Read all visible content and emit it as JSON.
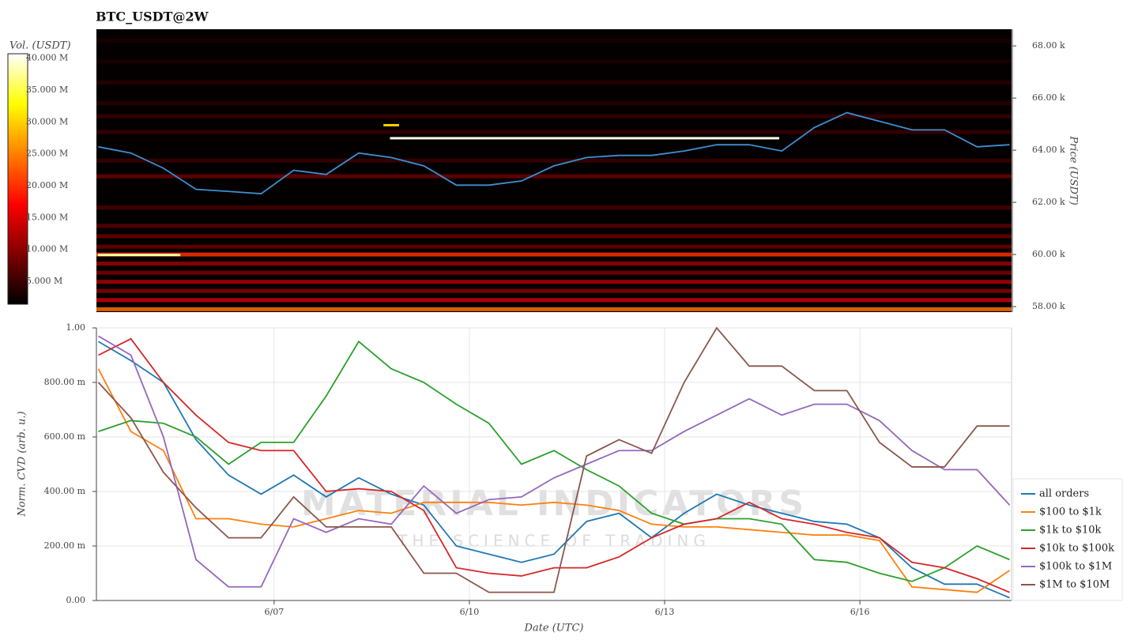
{
  "chart_data": [
    {
      "type": "heatmap",
      "title": "BTC_USDT@2W",
      "ylabel": "Price (USDT)",
      "colorbar_label": "Vol. (USDT)",
      "xlim": [
        4.27,
        18.33
      ],
      "ylim": [
        57790,
        68640
      ],
      "yticks": [
        {
          "value": 58000,
          "label": "58.00 k"
        },
        {
          "value": 60000,
          "label": "60.00 k"
        },
        {
          "value": 62000,
          "label": "62.00 k"
        },
        {
          "value": 64000,
          "label": "64.00 k"
        },
        {
          "value": 66000,
          "label": "66.00 k"
        },
        {
          "value": 68000,
          "label": "68.00 k"
        }
      ],
      "zlim": [
        1400000,
        40700000
      ],
      "zticks": [
        {
          "value": 5000000,
          "label": "5.000 M"
        },
        {
          "value": 10000000,
          "label": "10.000 M"
        },
        {
          "value": 15000000,
          "label": "15.000 M"
        },
        {
          "value": 20000000,
          "label": "20.000 M"
        },
        {
          "value": 25000000,
          "label": "25.000 M"
        },
        {
          "value": 30000000,
          "label": "30.000 M"
        },
        {
          "value": 35000000,
          "label": "35.000 M"
        },
        {
          "value": 40000000,
          "label": "40.000 M"
        }
      ],
      "levels": [
        57900,
        58250,
        58600,
        58950,
        59300,
        59650,
        60000,
        60300,
        60700,
        61100,
        61800,
        63000,
        63600,
        64700,
        65300,
        65800,
        66600,
        67400,
        68200
      ],
      "volumes": [
        24000000,
        14000000,
        10000000,
        12000000,
        9000000,
        11000000,
        20000000,
        8000000,
        8000000,
        7000000,
        6000000,
        8000000,
        5000000,
        5000000,
        5000000,
        4000000,
        4000000,
        3000000,
        3000000
      ],
      "walls": [
        {
          "price": 64460,
          "x0": 8.78,
          "x1": 14.76,
          "volume": 40000000
        },
        {
          "price": 59980,
          "x0": 4.29,
          "x1": 5.56,
          "volume": 38000000
        },
        {
          "price": 64960,
          "x0": 8.68,
          "x1": 8.92,
          "volume": 30000000
        }
      ],
      "x": [
        4.3,
        4.8,
        5.3,
        5.8,
        6.3,
        6.8,
        7.3,
        7.8,
        8.3,
        8.8,
        9.3,
        9.8,
        10.3,
        10.8,
        11.3,
        11.8,
        12.3,
        12.8,
        13.3,
        13.8,
        14.3,
        14.8,
        15.3,
        15.8,
        16.3,
        16.8,
        17.3,
        17.8,
        18.3
      ],
      "series": [
        {
          "color": "#3d8fd1",
          "values": [
            64130,
            63890,
            63310,
            62500,
            62420,
            62330,
            63230,
            63070,
            63890,
            63720,
            63400,
            62660,
            62660,
            62820,
            63400,
            63720,
            63800,
            63800,
            63970,
            64210,
            64210,
            63970,
            64870,
            65440,
            65110,
            64780,
            64780,
            64130,
            64210
          ]
        }
      ]
    },
    {
      "type": "line",
      "xlabel": "Date (UTC)",
      "ylabel": "Norm. CVD (arb. u.)",
      "watermark": "MATERIAL INDICATORS",
      "watermark_sub": "THE SCIENCE OF TRADING",
      "xlim": [
        4.27,
        18.33
      ],
      "xticks": [
        {
          "value": 7,
          "label": "6/07"
        },
        {
          "value": 10,
          "label": "6/10"
        },
        {
          "value": 13,
          "label": "6/13"
        },
        {
          "value": 16,
          "label": "6/16"
        }
      ],
      "ylim": [
        0,
        1
      ],
      "yticks": [
        {
          "value": 0,
          "label": "0.00"
        },
        {
          "value": 0.2,
          "label": "200.00 m"
        },
        {
          "value": 0.4,
          "label": "400.00 m"
        },
        {
          "value": 0.6,
          "label": "600.00 m"
        },
        {
          "value": 0.8,
          "label": "800.00 m"
        },
        {
          "value": 1,
          "label": "1.00"
        }
      ],
      "grid": true,
      "legend": "lower right",
      "x": [
        4.3,
        4.8,
        5.3,
        5.8,
        6.3,
        6.8,
        7.3,
        7.8,
        8.3,
        8.8,
        9.3,
        9.8,
        10.3,
        10.8,
        11.3,
        11.8,
        12.3,
        12.8,
        13.3,
        13.8,
        14.3,
        14.8,
        15.3,
        15.8,
        16.3,
        16.8,
        17.3,
        17.8,
        18.3
      ],
      "series": [
        {
          "name": "all orders",
          "color": "#1f77b4",
          "values": [
            0.95,
            0.88,
            0.8,
            0.59,
            0.46,
            0.39,
            0.46,
            0.38,
            0.45,
            0.39,
            0.35,
            0.2,
            0.17,
            0.14,
            0.17,
            0.29,
            0.32,
            0.23,
            0.32,
            0.39,
            0.35,
            0.32,
            0.29,
            0.28,
            0.23,
            0.12,
            0.06,
            0.06,
            0.01
          ]
        },
        {
          "name": "$100 to $1k",
          "color": "#ff7f0e",
          "values": [
            0.85,
            0.62,
            0.55,
            0.3,
            0.3,
            0.28,
            0.27,
            0.3,
            0.33,
            0.32,
            0.36,
            0.36,
            0.36,
            0.35,
            0.36,
            0.35,
            0.33,
            0.28,
            0.27,
            0.27,
            0.26,
            0.25,
            0.24,
            0.24,
            0.22,
            0.05,
            0.04,
            0.03,
            0.11
          ]
        },
        {
          "name": "$1k to $10k",
          "color": "#2ca02c",
          "values": [
            0.62,
            0.66,
            0.65,
            0.6,
            0.5,
            0.58,
            0.58,
            0.75,
            0.95,
            0.85,
            0.8,
            0.72,
            0.65,
            0.5,
            0.55,
            0.48,
            0.42,
            0.32,
            0.28,
            0.3,
            0.3,
            0.28,
            0.15,
            0.14,
            0.1,
            0.07,
            0.12,
            0.2,
            0.15
          ]
        },
        {
          "name": "$10k to $100k",
          "color": "#d62728",
          "values": [
            0.9,
            0.96,
            0.8,
            0.68,
            0.58,
            0.55,
            0.55,
            0.4,
            0.41,
            0.4,
            0.33,
            0.12,
            0.1,
            0.09,
            0.12,
            0.12,
            0.16,
            0.23,
            0.28,
            0.3,
            0.36,
            0.3,
            0.28,
            0.25,
            0.23,
            0.14,
            0.12,
            0.08,
            0.03
          ]
        },
        {
          "name": "$100k to $1M",
          "color": "#9467bd",
          "values": [
            0.97,
            0.9,
            0.6,
            0.15,
            0.05,
            0.05,
            0.3,
            0.25,
            0.3,
            0.28,
            0.42,
            0.32,
            0.37,
            0.38,
            0.45,
            0.5,
            0.55,
            0.55,
            0.62,
            0.68,
            0.74,
            0.68,
            0.72,
            0.72,
            0.66,
            0.55,
            0.48,
            0.48,
            0.35
          ]
        },
        {
          "name": "$1M to $10M",
          "color": "#8c564b",
          "values": [
            0.8,
            0.67,
            0.47,
            0.34,
            0.23,
            0.23,
            0.38,
            0.27,
            0.27,
            0.27,
            0.1,
            0.1,
            0.03,
            0.03,
            0.03,
            0.53,
            0.59,
            0.54,
            0.8,
            1.0,
            0.86,
            0.86,
            0.77,
            0.77,
            0.58,
            0.49,
            0.49,
            0.64,
            0.64
          ]
        }
      ]
    }
  ]
}
